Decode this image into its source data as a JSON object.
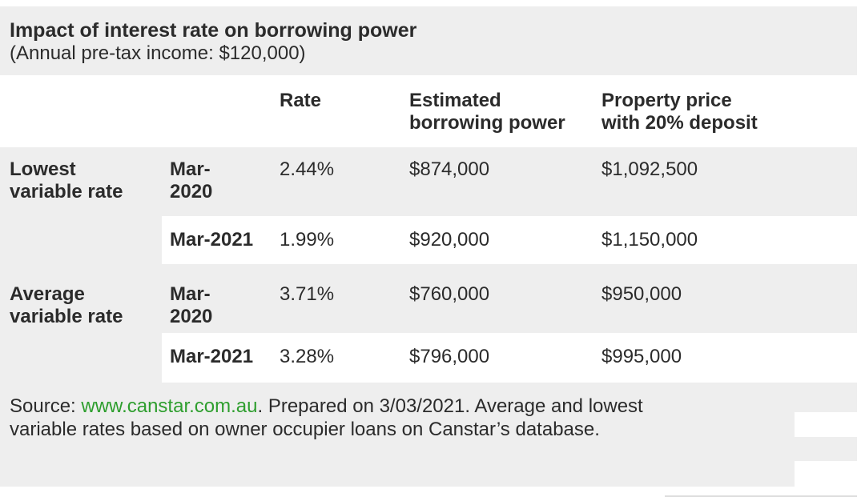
{
  "title": "Impact of interest rate on borrowing power",
  "subtitle": "(Annual pre-tax income: $120,000)",
  "headers": {
    "rate": "Rate",
    "borrowing_line1": "Estimated",
    "borrowing_line2": "borrowing power",
    "price_line1": "Property price",
    "price_line2": "with 20% deposit"
  },
  "groups": [
    {
      "label_line1": "Lowest",
      "label_line2": "variable rate",
      "rows": [
        {
          "date_line1": "Mar-",
          "date_line2": "2020",
          "rate": "2.44%",
          "borrowing": "$874,000",
          "price": "$1,092,500"
        },
        {
          "date": "Mar-2021",
          "rate": "1.99%",
          "borrowing": "$920,000",
          "price": "$1,150,000"
        }
      ]
    },
    {
      "label_line1": "Average",
      "label_line2": "variable rate",
      "rows": [
        {
          "date_line1": "Mar-",
          "date_line2": "2020",
          "rate": "3.71%",
          "borrowing": "$760,000",
          "price": "$950,000"
        },
        {
          "date": "Mar-2021",
          "rate": "3.28%",
          "borrowing": "$796,000",
          "price": "$995,000"
        }
      ]
    }
  ],
  "source": {
    "prefix": "Source: ",
    "link_text": "www.canstar.com.au",
    "suffix_line1": ". Prepared on 3/03/2021. Average and lowest",
    "line2": "variable rates based on owner occupier loans on Canstar’s database."
  },
  "colors": {
    "row_grey": "#eeeeee",
    "text": "#2b2b2b",
    "link": "#2e9e2e"
  }
}
